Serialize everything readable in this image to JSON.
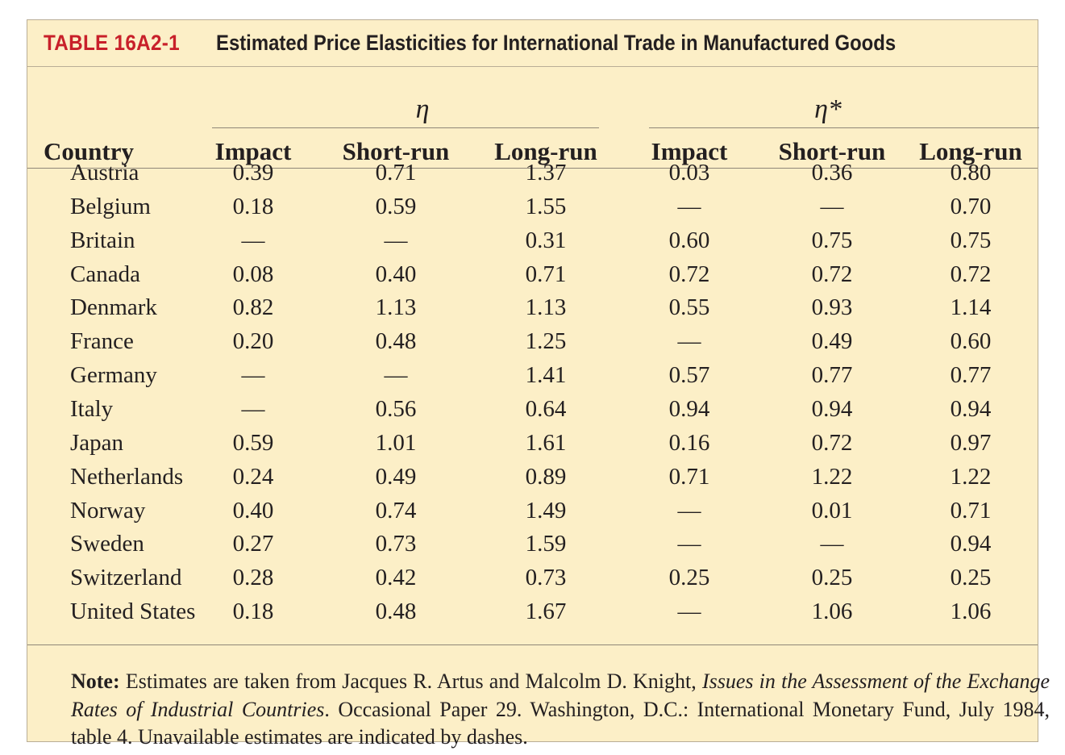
{
  "table": {
    "label": "TABLE 16A2-1",
    "title": "Estimated Price Elasticities for International Trade in Manufactured Goods",
    "groups": [
      {
        "symbol": "η"
      },
      {
        "symbol": "η*"
      }
    ],
    "columns": [
      "Country",
      "Impact",
      "Short-run",
      "Long-run",
      "Impact",
      "Short-run",
      "Long-run"
    ],
    "rows": [
      [
        "Austria",
        "0.39",
        "0.71",
        "1.37",
        "0.03",
        "0.36",
        "0.80"
      ],
      [
        "Belgium",
        "0.18",
        "0.59",
        "1.55",
        "—",
        "—",
        "0.70"
      ],
      [
        "Britain",
        "—",
        "—",
        "0.31",
        "0.60",
        "0.75",
        "0.75"
      ],
      [
        "Canada",
        "0.08",
        "0.40",
        "0.71",
        "0.72",
        "0.72",
        "0.72"
      ],
      [
        "Denmark",
        "0.82",
        "1.13",
        "1.13",
        "0.55",
        "0.93",
        "1.14"
      ],
      [
        "France",
        "0.20",
        "0.48",
        "1.25",
        "—",
        "0.49",
        "0.60"
      ],
      [
        "Germany",
        "—",
        "—",
        "1.41",
        "0.57",
        "0.77",
        "0.77"
      ],
      [
        "Italy",
        "—",
        "0.56",
        "0.64",
        "0.94",
        "0.94",
        "0.94"
      ],
      [
        "Japan",
        "0.59",
        "1.01",
        "1.61",
        "0.16",
        "0.72",
        "0.97"
      ],
      [
        "Netherlands",
        "0.24",
        "0.49",
        "0.89",
        "0.71",
        "1.22",
        "1.22"
      ],
      [
        "Norway",
        "0.40",
        "0.74",
        "1.49",
        "—",
        "0.01",
        "0.71"
      ],
      [
        "Sweden",
        "0.27",
        "0.73",
        "1.59",
        "—",
        "—",
        "0.94"
      ],
      [
        "Switzerland",
        "0.28",
        "0.42",
        "0.73",
        "0.25",
        "0.25",
        "0.25"
      ],
      [
        "United States",
        "0.18",
        "0.48",
        "1.67",
        "—",
        "1.06",
        "1.06"
      ]
    ],
    "note": {
      "label": "Note:",
      "text_before": "Estimates are taken from Jacques R. Artus and Malcolm D. Knight,",
      "italic": "Issues in the Assessment of the Exchange Rates of Industrial Countries",
      "text_after": ". Occasional Paper 29. Washington, D.C.: International Monetary Fund, July 1984, table 4. Unavailable estimates are indicated by dashes."
    }
  },
  "colors": {
    "background": "#fcefc7",
    "label_red": "#c8202a",
    "text": "#231f20",
    "rule": "#8f8778"
  }
}
